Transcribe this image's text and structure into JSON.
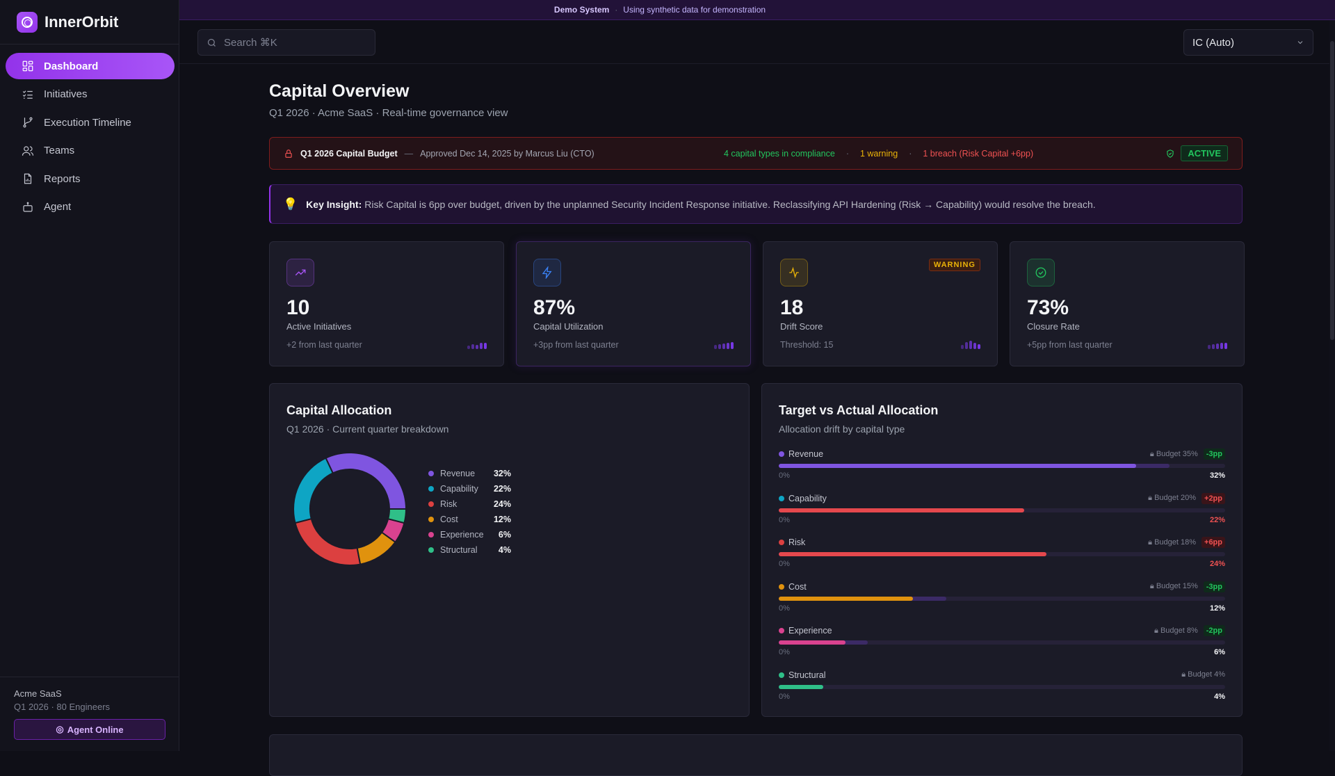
{
  "app": {
    "name": "InnerOrbit"
  },
  "banner": {
    "label": "Demo System",
    "text": "Using synthetic data for demonstration"
  },
  "sidebar": {
    "items": [
      {
        "label": "Dashboard",
        "icon": "layout-grid-icon",
        "active": true
      },
      {
        "label": "Initiatives",
        "icon": "list-checks-icon"
      },
      {
        "label": "Execution Timeline",
        "icon": "git-branch-icon"
      },
      {
        "label": "Teams",
        "icon": "users-icon"
      },
      {
        "label": "Reports",
        "icon": "file-chart-icon"
      },
      {
        "label": "Agent",
        "icon": "bot-icon"
      }
    ],
    "footer": {
      "org": "Acme SaaS",
      "sub": "Q1 2026 · 80 Engineers",
      "agent_button": "Agent Online"
    }
  },
  "header": {
    "search_placeholder": "Search ⌘K",
    "role_select": "IC (Auto)"
  },
  "page": {
    "title": "Capital Overview",
    "subtitle": "Q1 2026 · Acme SaaS · Real-time governance view"
  },
  "budget": {
    "title": "Q1 2026 Capital Budget",
    "dash": "—",
    "approved": "Approved Dec 14, 2025 by Marcus Liu (CTO)",
    "compliance": "4 capital types in compliance",
    "warning": "1 warning",
    "breach": "1 breach (Risk Capital +6pp)",
    "status": "ACTIVE",
    "sep": "·"
  },
  "insight": {
    "label": "Key Insight:",
    "text": "Risk Capital is 6pp over budget, driven by the unplanned Security Incident Response initiative. Reclassifying API Hardening (Risk → Capability) would resolve the breach."
  },
  "kpis": [
    {
      "value": "10",
      "label": "Active Initiatives",
      "delta": "+2 from last quarter",
      "icon": "trending-up-icon",
      "color": "#a855f7",
      "spark": [
        3,
        5,
        4,
        7,
        7
      ]
    },
    {
      "value": "87%",
      "label": "Capital Utilization",
      "delta": "+3pp from last quarter",
      "icon": "zap-icon",
      "color": "#3b82f6",
      "spark": [
        4,
        5,
        6,
        7,
        8
      ]
    },
    {
      "value": "18",
      "label": "Drift Score",
      "delta": "Threshold: 15",
      "icon": "activity-icon",
      "color": "#eab308",
      "badge": "WARNING",
      "spark": [
        4,
        8,
        10,
        7,
        5
      ]
    },
    {
      "value": "73%",
      "label": "Closure Rate",
      "delta": "+5pp from last quarter",
      "icon": "check-circle-icon",
      "color": "#22c55e",
      "spark": [
        4,
        5,
        6,
        7,
        7
      ]
    }
  ],
  "chart_data": [
    {
      "type": "pie",
      "title": "Capital Allocation",
      "subtitle": "Q1 2026 · Current quarter breakdown",
      "categories": [
        "Revenue",
        "Capability",
        "Risk",
        "Cost",
        "Experience",
        "Structural"
      ],
      "values": [
        32,
        22,
        24,
        12,
        6,
        4
      ],
      "labels": [
        "32%",
        "22%",
        "24%",
        "12%",
        "6%",
        "4%"
      ],
      "colors": [
        "#7f55e0",
        "#0ea5c4",
        "#dc4040",
        "#e0920e",
        "#d9428f",
        "#2fbf88"
      ]
    },
    {
      "type": "bar",
      "title": "Target vs Actual Allocation",
      "subtitle": "Allocation drift by capital type",
      "xlim": [
        0,
        40
      ],
      "axis_min_label": "0%",
      "rows": [
        {
          "name": "Revenue",
          "actual": 32,
          "budget": 35,
          "actual_label": "32%",
          "budget_label": "Budget 35%",
          "delta": "-3pp",
          "over": false,
          "color": "#7f55e0"
        },
        {
          "name": "Capability",
          "actual": 22,
          "budget": 20,
          "actual_label": "22%",
          "budget_label": "Budget 20%",
          "delta": "+2pp",
          "over": true,
          "color": "#0ea5c4"
        },
        {
          "name": "Risk",
          "actual": 24,
          "budget": 18,
          "actual_label": "24%",
          "budget_label": "Budget 18%",
          "delta": "+6pp",
          "over": true,
          "color": "#dc4040"
        },
        {
          "name": "Cost",
          "actual": 12,
          "budget": 15,
          "actual_label": "12%",
          "budget_label": "Budget 15%",
          "delta": "-3pp",
          "over": false,
          "color": "#e0920e"
        },
        {
          "name": "Experience",
          "actual": 6,
          "budget": 8,
          "actual_label": "6%",
          "budget_label": "Budget 8%",
          "delta": "-2pp",
          "over": false,
          "color": "#d9428f"
        },
        {
          "name": "Structural",
          "actual": 4,
          "budget": 4,
          "actual_label": "4%",
          "budget_label": "Budget 4%",
          "delta": null,
          "over": false,
          "color": "#2fbf88"
        }
      ]
    }
  ]
}
